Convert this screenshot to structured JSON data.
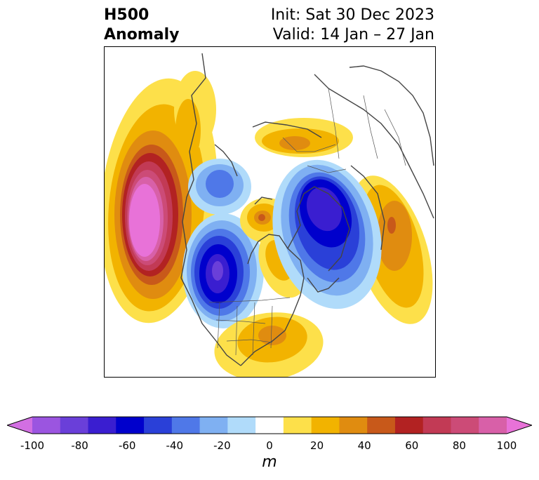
{
  "title": {
    "main_line1": "H500",
    "main_line2": "Anomaly",
    "init": "Init: Sat 30 Dec 2023",
    "valid": "Valid: 14 Jan – 27 Jan"
  },
  "colorbar": {
    "unit": "m",
    "ticks": [
      "-100",
      "-80",
      "-60",
      "-40",
      "-20",
      "0",
      "20",
      "40",
      "60",
      "80",
      "100"
    ],
    "colors": [
      "#d26fe2",
      "#9b55e0",
      "#6a3fd9",
      "#3a1ed0",
      "#0000cc",
      "#2a40d8",
      "#4f78e8",
      "#7fb0f2",
      "#b0dbfa",
      "#ffffff",
      "#fde04a",
      "#f2b300",
      "#e08c10",
      "#c8591a",
      "#b22222",
      "#c23a55",
      "#cc4b77",
      "#d860a8",
      "#e872d8"
    ]
  },
  "legend_colors": {
    "pink": "#e872d8",
    "crimson": "#b22222",
    "orange": "#e08c10",
    "gold": "#f2b300",
    "yellow": "#fde04a",
    "navy": "#0000cc",
    "blue": "#2a40d8",
    "lightblue": "#b0dbfa",
    "purple": "#3a1ed0"
  }
}
